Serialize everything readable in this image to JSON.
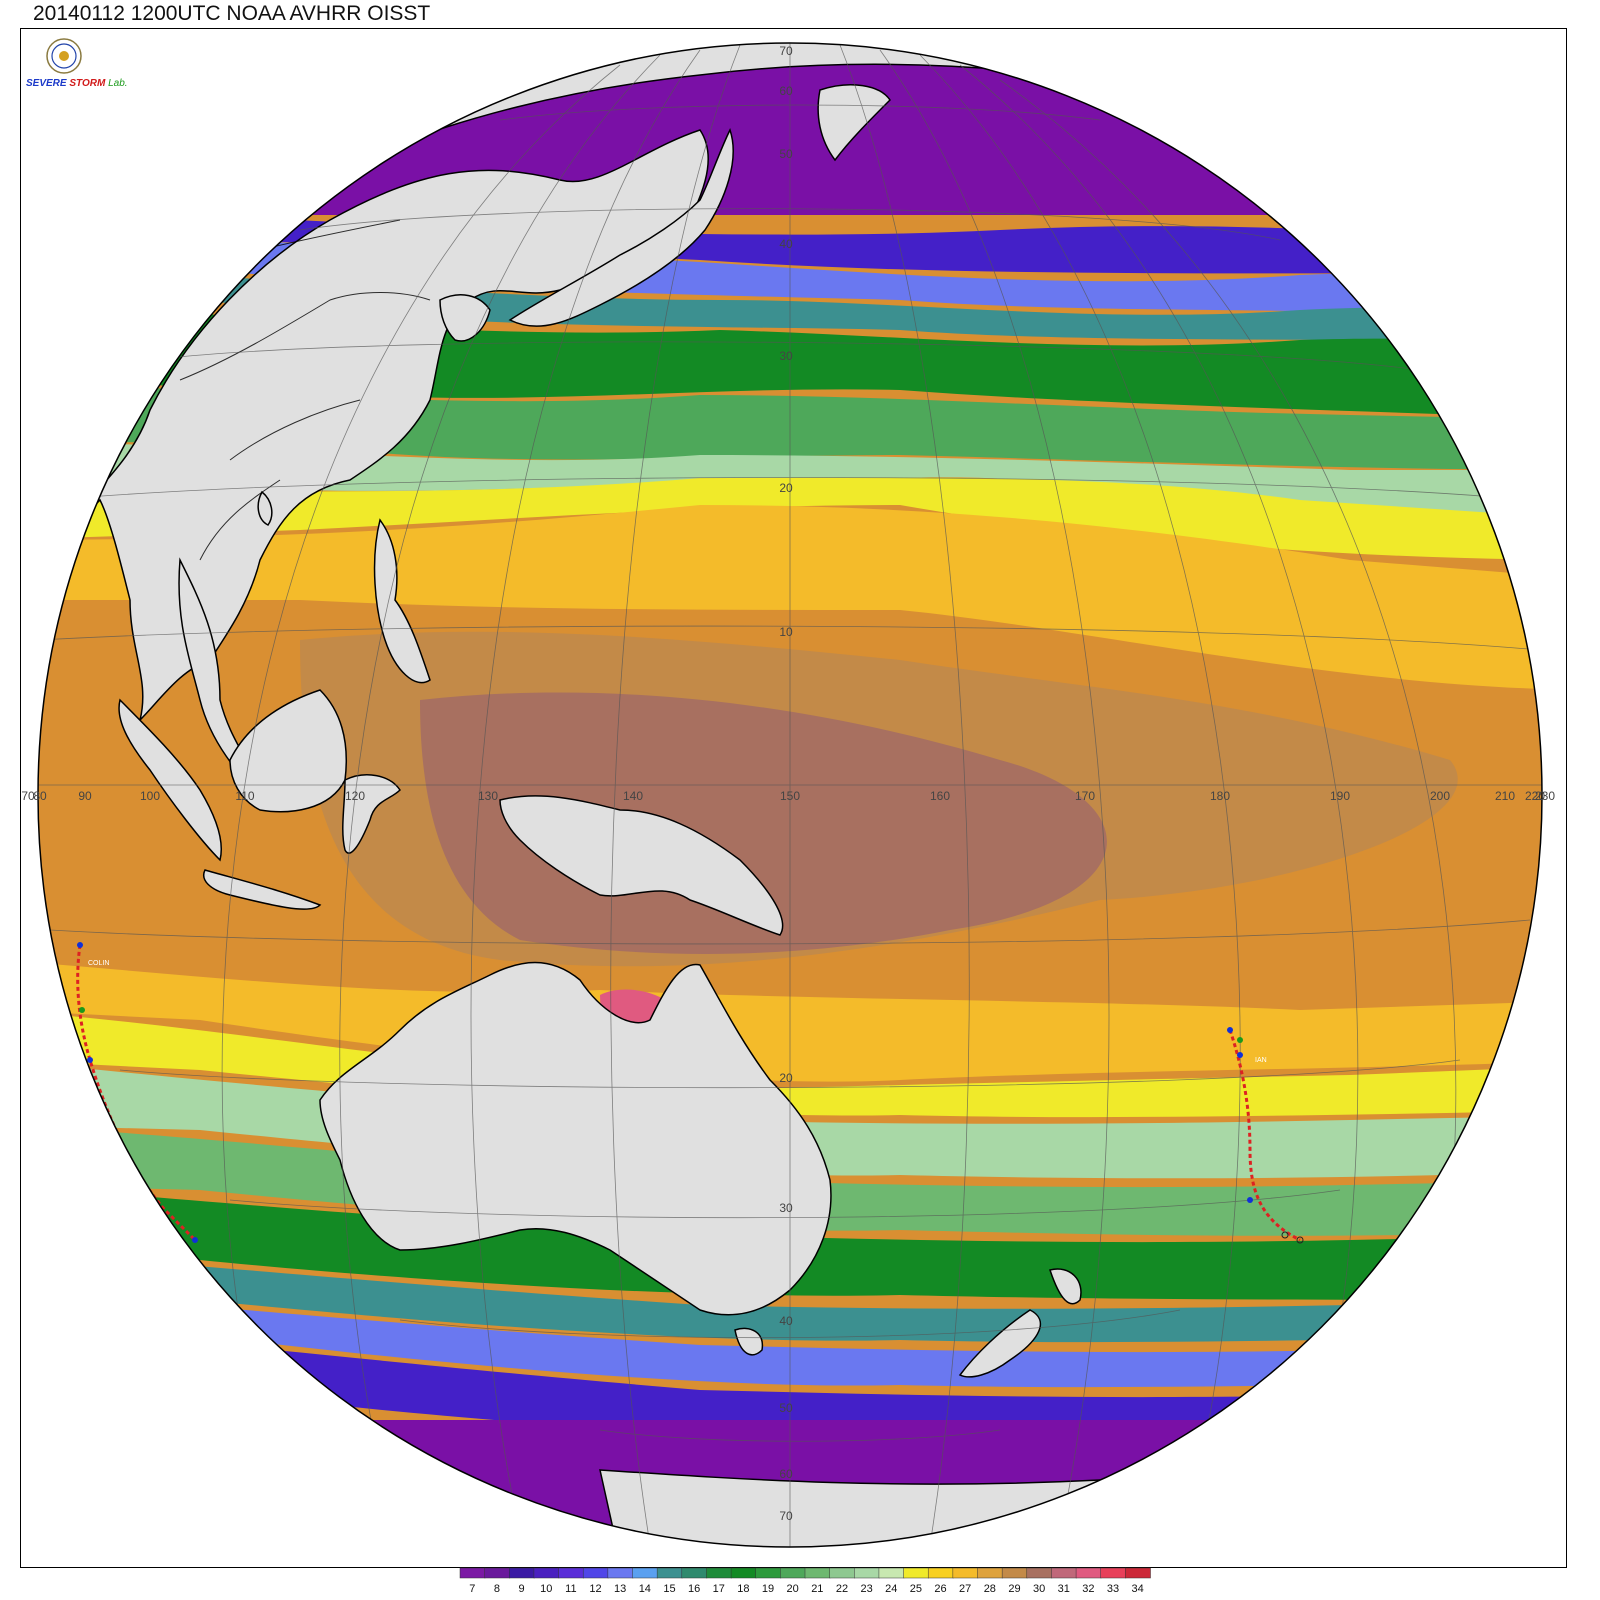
{
  "title": "20140112 1200UTC NOAA AVHRR OISST",
  "logo": {
    "text_lines": [
      "SEVERE",
      "STORM",
      "Lab."
    ]
  },
  "colors": {
    "land": "#e0e0e0",
    "coast": "#000000",
    "grid": "#555555",
    "offglobe_land": "#efefef"
  },
  "colorbar": {
    "labels": [
      "7",
      "8",
      "9",
      "10",
      "11",
      "12",
      "13",
      "14",
      "15",
      "16",
      "17",
      "18",
      "19",
      "20",
      "21",
      "22",
      "23",
      "24",
      "25",
      "26",
      "27",
      "28",
      "29",
      "30",
      "31",
      "32",
      "33",
      "34"
    ],
    "colors": [
      "#7b1aa4",
      "#6a1a9c",
      "#3b1aa4",
      "#4a20c0",
      "#5a2ed8",
      "#5046e8",
      "#6a78f0",
      "#5aa0f0",
      "#3c9090",
      "#2f8a6e",
      "#1f8c3a",
      "#138a24",
      "#2d9a3c",
      "#4ea85a",
      "#6eb870",
      "#8ec890",
      "#a8d8a6",
      "#c8e8b0",
      "#f0ea2a",
      "#f8d020",
      "#f4bb2a",
      "#dea23c",
      "#c38a48",
      "#a87060",
      "#c0687a",
      "#e05a80",
      "#e8405a",
      "#cc2838"
    ]
  },
  "grid_labels": {
    "lat_north": [
      "70",
      "60",
      "50",
      "40",
      "30",
      "20",
      "10"
    ],
    "lat_south": [
      "20",
      "30",
      "40",
      "50",
      "60",
      "70"
    ],
    "lon": [
      "70",
      "80",
      "90",
      "100",
      "110",
      "120",
      "130",
      "140",
      "150",
      "160",
      "170",
      "180",
      "190",
      "200",
      "210",
      "220",
      "230"
    ]
  },
  "storm_labels": [
    "COLIN",
    "IAN"
  ]
}
